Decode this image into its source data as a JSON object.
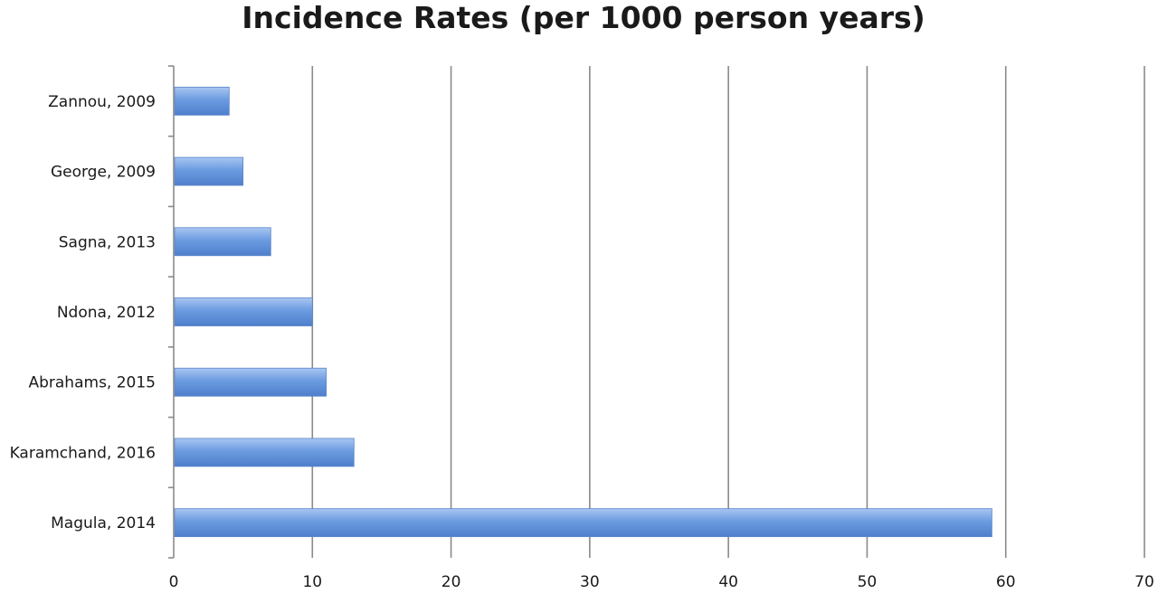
{
  "chart_data": {
    "type": "bar",
    "orientation": "horizontal",
    "title": "Incidence Rates (per 1000 person years)",
    "xlabel": "",
    "ylabel": "",
    "categories": [
      "Zannou, 2009",
      "George, 2009",
      "Sagna, 2013",
      "Ndona, 2012",
      "Abrahams, 2015",
      "Karamchand, 2016",
      "Magula, 2014"
    ],
    "values": [
      4,
      5,
      7,
      10,
      11,
      13,
      59
    ],
    "xlim": [
      0,
      70
    ],
    "xticks": [
      0,
      10,
      20,
      30,
      40,
      50,
      60,
      70
    ],
    "grid": "vertical",
    "legend": "none",
    "bar_color": "#6b9be0",
    "bar_color_light": "#a9c6f2",
    "bar_color_dark": "#4f7fcb",
    "grid_color": "#8a8a8a"
  }
}
